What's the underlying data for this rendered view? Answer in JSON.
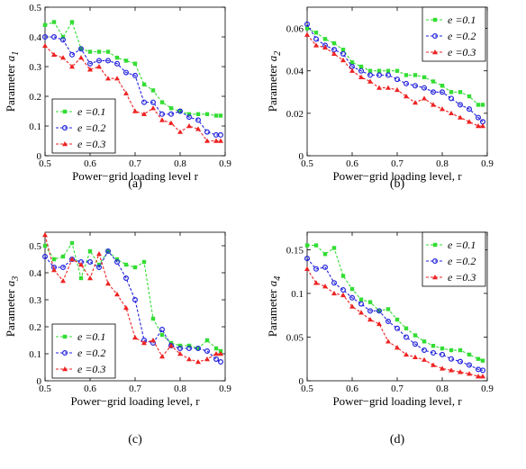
{
  "chart_data": [
    {
      "id": "a",
      "type": "line",
      "caption": "(a)",
      "xlabel": "Power−grid loading level r",
      "ylabel": "Parameter a1",
      "ylabel_main": "Parameter ",
      "ylabel_sym": "a",
      "ylabel_sub": "1",
      "xlim": [
        0.5,
        0.9
      ],
      "ylim": [
        0,
        0.5
      ],
      "xticks": [
        "0.5",
        "0.6",
        "0.7",
        "0.8",
        "0.9"
      ],
      "yticks": [
        "0",
        "0.1",
        "0.2",
        "0.3",
        "0.4",
        "0.5"
      ],
      "legend_position": "bottom-left",
      "x": [
        0.5,
        0.52,
        0.54,
        0.56,
        0.58,
        0.6,
        0.62,
        0.64,
        0.66,
        0.68,
        0.7,
        0.72,
        0.74,
        0.76,
        0.78,
        0.8,
        0.82,
        0.84,
        0.86,
        0.88,
        0.89
      ],
      "series": [
        {
          "name": "e =0.1",
          "values": [
            0.44,
            0.45,
            0.4,
            0.45,
            0.36,
            0.35,
            0.35,
            0.35,
            0.33,
            0.32,
            0.31,
            0.24,
            0.22,
            0.18,
            0.16,
            0.15,
            0.14,
            0.14,
            0.14,
            0.135,
            0.135
          ]
        },
        {
          "name": "e =0.2",
          "values": [
            0.4,
            0.4,
            0.39,
            0.34,
            0.36,
            0.31,
            0.32,
            0.32,
            0.31,
            0.28,
            0.27,
            0.18,
            0.18,
            0.14,
            0.14,
            0.15,
            0.13,
            0.12,
            0.08,
            0.07,
            0.07
          ]
        },
        {
          "name": "e =0.3",
          "values": [
            0.37,
            0.34,
            0.33,
            0.3,
            0.33,
            0.29,
            0.3,
            0.26,
            0.26,
            0.21,
            0.15,
            0.14,
            0.16,
            0.12,
            0.11,
            0.08,
            0.1,
            0.09,
            0.05,
            0.05,
            0.05
          ]
        }
      ]
    },
    {
      "id": "b",
      "type": "line",
      "caption": "(b)",
      "xlabel": "Power−grid loading level, r",
      "ylabel": "Parameter a2",
      "ylabel_main": "Parameter ",
      "ylabel_sym": "a",
      "ylabel_sub": "2",
      "xlim": [
        0.5,
        0.9
      ],
      "ylim": [
        0,
        0.07
      ],
      "xticks": [
        "0.5",
        "0.6",
        "0.7",
        "0.8",
        "0.9"
      ],
      "yticks": [
        "0",
        "0.02",
        "0.04",
        "0.06"
      ],
      "legend_position": "top-right",
      "x": [
        0.5,
        0.52,
        0.54,
        0.56,
        0.58,
        0.6,
        0.62,
        0.64,
        0.66,
        0.68,
        0.7,
        0.72,
        0.74,
        0.76,
        0.78,
        0.8,
        0.82,
        0.84,
        0.86,
        0.88,
        0.89
      ],
      "series": [
        {
          "name": "e =0.1",
          "values": [
            0.06,
            0.058,
            0.055,
            0.053,
            0.05,
            0.044,
            0.042,
            0.04,
            0.04,
            0.04,
            0.04,
            0.038,
            0.038,
            0.037,
            0.035,
            0.033,
            0.03,
            0.03,
            0.028,
            0.024,
            0.024
          ]
        },
        {
          "name": "e =0.2",
          "values": [
            0.062,
            0.055,
            0.052,
            0.05,
            0.048,
            0.042,
            0.04,
            0.038,
            0.038,
            0.038,
            0.036,
            0.034,
            0.033,
            0.032,
            0.03,
            0.03,
            0.027,
            0.024,
            0.022,
            0.018,
            0.016
          ]
        },
        {
          "name": "e =0.3",
          "values": [
            0.057,
            0.052,
            0.051,
            0.048,
            0.045,
            0.04,
            0.037,
            0.035,
            0.032,
            0.032,
            0.031,
            0.028,
            0.025,
            0.027,
            0.024,
            0.022,
            0.02,
            0.018,
            0.016,
            0.014,
            0.014
          ]
        }
      ]
    },
    {
      "id": "c",
      "type": "line",
      "caption": "(c)",
      "xlabel": "Power−grid loading level, r",
      "ylabel": "Parameter a3",
      "ylabel_main": "Parameter ",
      "ylabel_sym": "a",
      "ylabel_sub": "3",
      "xlim": [
        0.5,
        0.9
      ],
      "ylim": [
        0,
        0.55
      ],
      "xticks": [
        "0.5",
        "0.6",
        "0.7",
        "0.8",
        "0.9"
      ],
      "yticks": [
        "0",
        "0.1",
        "0.2",
        "0.3",
        "0.4",
        "0.5"
      ],
      "legend_position": "bottom-left",
      "x": [
        0.5,
        0.52,
        0.54,
        0.56,
        0.58,
        0.6,
        0.62,
        0.64,
        0.66,
        0.68,
        0.7,
        0.72,
        0.74,
        0.76,
        0.78,
        0.8,
        0.82,
        0.84,
        0.86,
        0.88,
        0.89
      ],
      "series": [
        {
          "name": "e =0.1",
          "values": [
            0.5,
            0.45,
            0.46,
            0.51,
            0.38,
            0.48,
            0.43,
            0.48,
            0.45,
            0.43,
            0.42,
            0.44,
            0.23,
            0.17,
            0.14,
            0.13,
            0.13,
            0.12,
            0.15,
            0.12,
            0.11
          ]
        },
        {
          "name": "e =0.2",
          "values": [
            0.46,
            0.42,
            0.42,
            0.45,
            0.44,
            0.44,
            0.42,
            0.48,
            0.44,
            0.38,
            0.3,
            0.15,
            0.14,
            0.19,
            0.13,
            0.12,
            0.12,
            0.12,
            0.11,
            0.08,
            0.07
          ]
        },
        {
          "name": "e =0.3",
          "values": [
            0.54,
            0.41,
            0.37,
            0.45,
            0.43,
            0.38,
            0.47,
            0.36,
            0.32,
            0.27,
            0.16,
            0.14,
            0.15,
            0.09,
            0.13,
            0.1,
            0.08,
            0.07,
            0.08,
            0.1,
            0.1
          ]
        }
      ]
    },
    {
      "id": "d",
      "type": "line",
      "caption": "(d)",
      "xlabel": "Power−grid loading level, r",
      "ylabel": "Parameter a4",
      "ylabel_main": "Parameter ",
      "ylabel_sym": "a",
      "ylabel_sub": "4",
      "xlim": [
        0.5,
        0.9
      ],
      "ylim": [
        0,
        0.17
      ],
      "xticks": [
        "0.5",
        "0.6",
        "0.7",
        "0.8",
        "0.9"
      ],
      "yticks": [
        "0",
        "0.05",
        "0.1",
        "0.15"
      ],
      "legend_position": "top-right",
      "x": [
        0.5,
        0.52,
        0.54,
        0.56,
        0.58,
        0.6,
        0.62,
        0.64,
        0.66,
        0.68,
        0.7,
        0.72,
        0.74,
        0.76,
        0.78,
        0.8,
        0.82,
        0.84,
        0.86,
        0.88,
        0.89
      ],
      "series": [
        {
          "name": "e =0.1",
          "values": [
            0.155,
            0.155,
            0.145,
            0.152,
            0.12,
            0.105,
            0.093,
            0.09,
            0.08,
            0.082,
            0.07,
            0.06,
            0.052,
            0.045,
            0.04,
            0.037,
            0.035,
            0.035,
            0.03,
            0.025,
            0.023
          ]
        },
        {
          "name": "e =0.2",
          "values": [
            0.14,
            0.128,
            0.13,
            0.112,
            0.104,
            0.095,
            0.088,
            0.08,
            0.08,
            0.068,
            0.06,
            0.05,
            0.042,
            0.035,
            0.032,
            0.03,
            0.025,
            0.022,
            0.018,
            0.013,
            0.012
          ]
        },
        {
          "name": "e =0.3",
          "values": [
            0.128,
            0.112,
            0.108,
            0.1,
            0.098,
            0.085,
            0.078,
            0.07,
            0.065,
            0.045,
            0.038,
            0.03,
            0.027,
            0.024,
            0.018,
            0.014,
            0.012,
            0.01,
            0.008,
            0.005,
            0.005
          ]
        }
      ]
    }
  ],
  "colors": {
    "series": [
      "#33dd33",
      "#2222dd",
      "#ee2222"
    ],
    "axes": "#000000",
    "background": "#ffffff"
  },
  "markers": [
    "square",
    "circle",
    "triangle"
  ]
}
